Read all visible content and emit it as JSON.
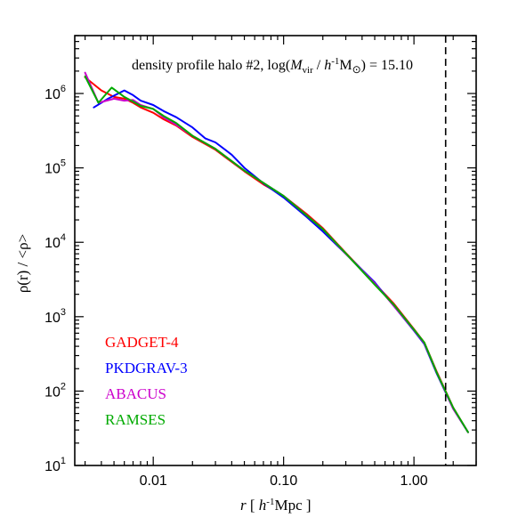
{
  "chart_data": {
    "type": "line",
    "title_parts": {
      "prefix": "density profile halo #2,  log(",
      "m": "M",
      "m_sub": "vir",
      "slash": " / ",
      "h": "h",
      "h_sup": "-1",
      "msun": "M",
      "sun_sym": "⊙",
      "suffix": ") = 15.10"
    },
    "xlabel_parts": {
      "r": "r",
      "open": "  [ ",
      "h": "h",
      "h_sup": "-1",
      "unit": "Mpc ]"
    },
    "ylabel": "ρ(r) / <ρ>",
    "x_scale": "log",
    "y_scale": "log",
    "xlim": [
      0.0025,
      3.0
    ],
    "ylim": [
      10,
      6000000
    ],
    "x_ticks": [
      {
        "value": 0.01,
        "label": "0.01"
      },
      {
        "value": 0.1,
        "label": "0.10"
      },
      {
        "value": 1.0,
        "label": "1.00"
      }
    ],
    "y_ticks": [
      {
        "value": 10,
        "base": "10",
        "exp": "1"
      },
      {
        "value": 100,
        "base": "10",
        "exp": "2"
      },
      {
        "value": 1000,
        "base": "10",
        "exp": "3"
      },
      {
        "value": 10000,
        "base": "10",
        "exp": "4"
      },
      {
        "value": 100000,
        "base": "10",
        "exp": "5"
      },
      {
        "value": 1000000,
        "base": "10",
        "exp": "6"
      }
    ],
    "vline_x": 1.75,
    "legend_placement": "lower-left",
    "series": [
      {
        "name": "GADGET-4",
        "color": "#ff0000",
        "x": [
          0.003,
          0.004,
          0.005,
          0.006,
          0.007,
          0.008,
          0.01,
          0.012,
          0.015,
          0.02,
          0.025,
          0.03,
          0.04,
          0.05,
          0.07,
          0.1,
          0.15,
          0.2,
          0.3,
          0.5,
          0.7,
          1.0,
          1.2,
          1.5,
          2.0,
          2.6
        ],
        "y": [
          1650000,
          1100000,
          900000,
          850000,
          750000,
          650000,
          550000,
          450000,
          370000,
          260000,
          210000,
          175000,
          120000,
          90000,
          60000,
          42000,
          24000,
          15500,
          7200,
          2800,
          1500,
          680,
          450,
          180,
          60,
          28
        ]
      },
      {
        "name": "PKDGRAV-3",
        "color": "#0000ff",
        "x": [
          0.0035,
          0.0045,
          0.006,
          0.007,
          0.008,
          0.01,
          0.012,
          0.015,
          0.02,
          0.025,
          0.03,
          0.04,
          0.05,
          0.07,
          0.1,
          0.15,
          0.2,
          0.3,
          0.5,
          0.7,
          1.0,
          1.2,
          1.5,
          2.0,
          2.6
        ],
        "y": [
          650000,
          850000,
          1100000,
          950000,
          800000,
          700000,
          580000,
          480000,
          350000,
          250000,
          220000,
          150000,
          100000,
          62000,
          40000,
          22000,
          14000,
          7000,
          2900,
          1400,
          650,
          430,
          170,
          58,
          28
        ]
      },
      {
        "name": "ABACUS",
        "color": "#cc00cc",
        "x": [
          0.003,
          0.0038,
          0.005,
          0.006,
          0.007,
          0.008,
          0.01,
          0.012,
          0.015,
          0.02,
          0.03,
          0.05,
          0.1,
          0.2,
          0.3,
          0.5,
          0.7,
          1.0,
          1.2,
          1.5,
          2.0,
          2.6
        ],
        "y": [
          1900000,
          750000,
          850000,
          800000,
          820000,
          700000,
          620000,
          480000,
          380000,
          270000,
          180000,
          92000,
          42000,
          15000,
          7000,
          2800,
          1400,
          660,
          440,
          175,
          58,
          28
        ]
      },
      {
        "name": "RAMSES",
        "color": "#00aa00",
        "x": [
          0.003,
          0.0038,
          0.0048,
          0.006,
          0.007,
          0.008,
          0.01,
          0.012,
          0.015,
          0.02,
          0.03,
          0.05,
          0.1,
          0.2,
          0.3,
          0.5,
          0.7,
          1.0,
          1.2,
          1.5,
          2.0,
          2.6
        ],
        "y": [
          1700000,
          750000,
          1200000,
          900000,
          780000,
          680000,
          620000,
          500000,
          400000,
          270000,
          180000,
          92000,
          42000,
          15000,
          7100,
          2700,
          1450,
          670,
          450,
          175,
          60,
          28
        ]
      }
    ]
  }
}
